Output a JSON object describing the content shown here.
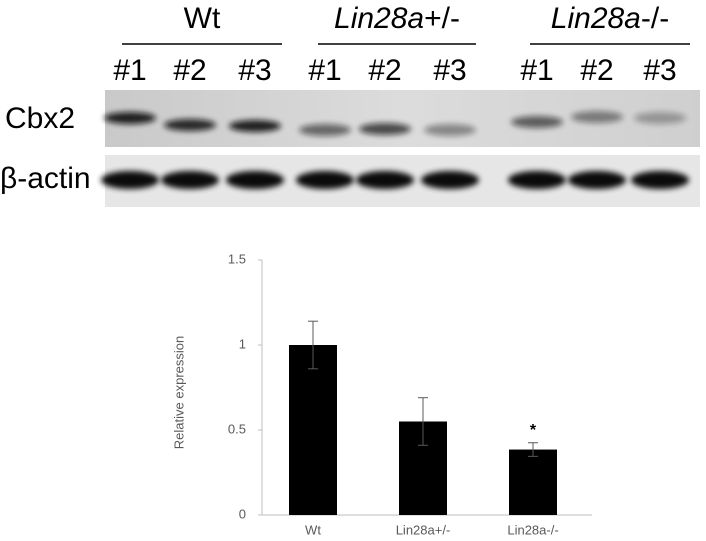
{
  "blot": {
    "groups": [
      {
        "name": "Wt"
      },
      {
        "name": "Lin28a",
        "suffix": "+/-"
      },
      {
        "name": "Lin28a",
        "suffix": "-/-"
      }
    ],
    "lanes": [
      "#1",
      "#2",
      "#3"
    ],
    "rows": [
      "Cbx2",
      "β-actin"
    ]
  },
  "chart_data": {
    "type": "bar",
    "y_label": "Relative expression",
    "categories": [
      "Wt",
      "Lin28a+/-",
      "Lin28a-/-"
    ],
    "values": [
      1.0,
      0.55,
      0.385
    ],
    "errors": [
      0.14,
      0.14,
      0.04
    ],
    "significance": [
      null,
      null,
      "*"
    ],
    "color": "#000000",
    "ylim": [
      0,
      1.5
    ],
    "yticks": [
      0,
      0.5,
      1,
      1.5
    ],
    "grid": false
  }
}
